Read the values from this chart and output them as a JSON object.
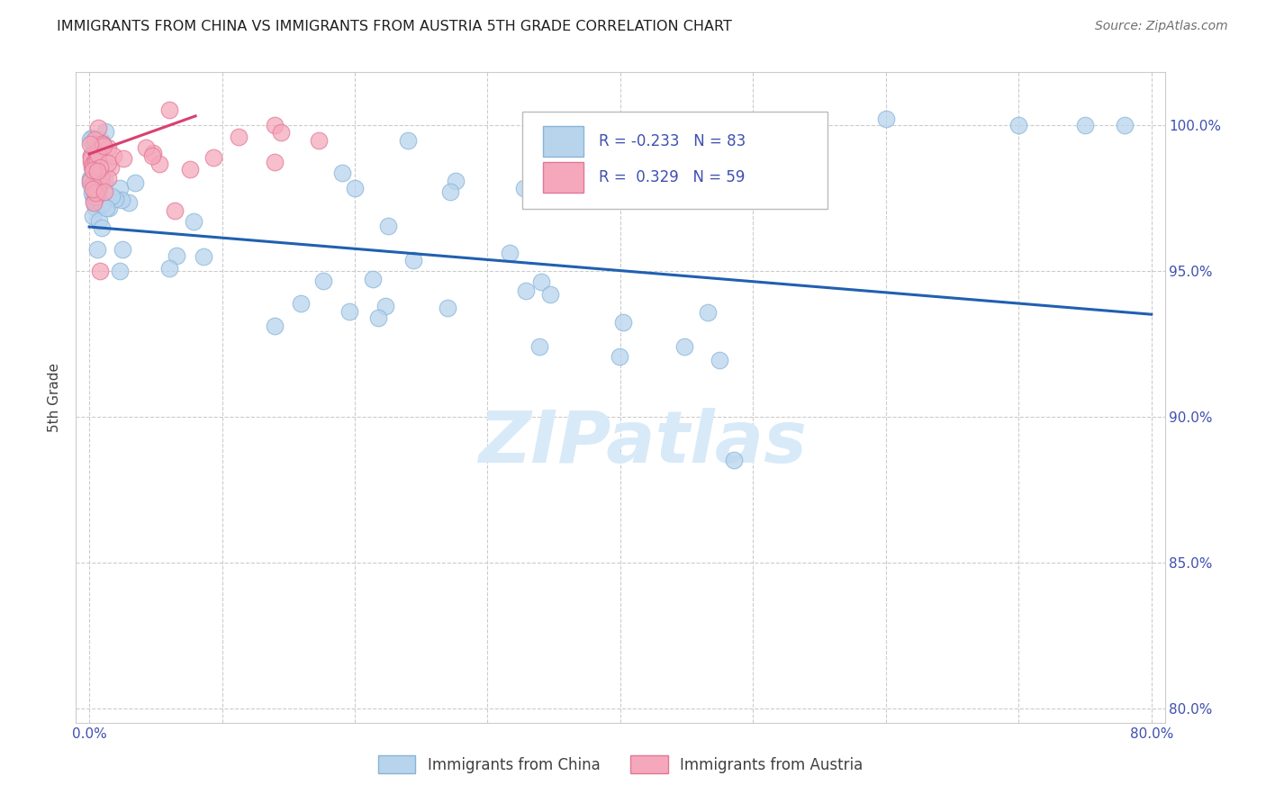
{
  "title": "IMMIGRANTS FROM CHINA VS IMMIGRANTS FROM AUSTRIA 5TH GRADE CORRELATION CHART",
  "source": "Source: ZipAtlas.com",
  "ylabel": "5th Grade",
  "x_tick_labels": [
    "0.0%",
    "",
    "",
    "",
    "",
    "",
    "",
    "",
    "80.0%"
  ],
  "x_tick_vals": [
    0,
    10,
    20,
    30,
    40,
    50,
    60,
    70,
    80
  ],
  "y_tick_labels": [
    "80.0%",
    "85.0%",
    "90.0%",
    "95.0%",
    "100.0%"
  ],
  "y_tick_vals": [
    80,
    85,
    90,
    95,
    100
  ],
  "xlim": [
    -1,
    81
  ],
  "ylim": [
    79.5,
    101.8
  ],
  "legend_china": "Immigrants from China",
  "legend_austria": "Immigrants from Austria",
  "R_china": -0.233,
  "N_china": 83,
  "R_austria": 0.329,
  "N_austria": 59,
  "china_color": "#b8d4ed",
  "china_edge_color": "#88b4d8",
  "austria_color": "#f5a8bb",
  "austria_edge_color": "#e07898",
  "china_line_color": "#2060b0",
  "austria_line_color": "#d84070",
  "watermark_color": "#d8eaf8",
  "background_color": "#ffffff",
  "grid_color": "#cccccc",
  "title_color": "#202020",
  "axis_label_color": "#4050b0",
  "right_axis_color": "#4050b0",
  "china_line_x0": 0,
  "china_line_x1": 80,
  "china_line_y0": 96.5,
  "china_line_y1": 93.5,
  "austria_line_x0": 0,
  "austria_line_x1": 8,
  "austria_line_y0": 99.0,
  "austria_line_y1": 100.3
}
